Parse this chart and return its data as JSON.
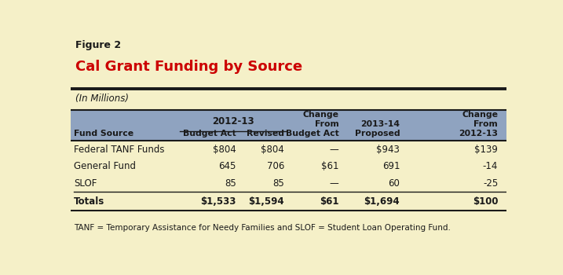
{
  "figure_label": "Figure 2",
  "title": "Cal Grant Funding by Source",
  "subtitle": "(In Millions)",
  "background_color": "#F5F0C8",
  "header_bg_color": "#8FA3C0",
  "title_color": "#CC0000",
  "figure_label_color": "#1a1a1a",
  "col_headers": [
    "Fund Source",
    "Budget Act",
    "Revised",
    "Change\nFrom\nBudget Act",
    "2013-14\nProposed",
    "Change\nFrom\n2012-13"
  ],
  "subheader_2012_13": "2012-13",
  "rows": [
    [
      "Federal TANF Funds",
      "$804",
      "$804",
      "—",
      "$943",
      "$139"
    ],
    [
      "General Fund",
      "645",
      "706",
      "$61",
      "691",
      "-14"
    ],
    [
      "SLOF",
      "85",
      "85",
      "—",
      "60",
      "-25"
    ]
  ],
  "totals_row": [
    "Totals",
    "$1,533",
    "$1,594",
    "$61",
    "$1,694",
    "$100"
  ],
  "footnote": "TANF = Temporary Assistance for Needy Families and SLOF = Student Loan Operating Fund."
}
